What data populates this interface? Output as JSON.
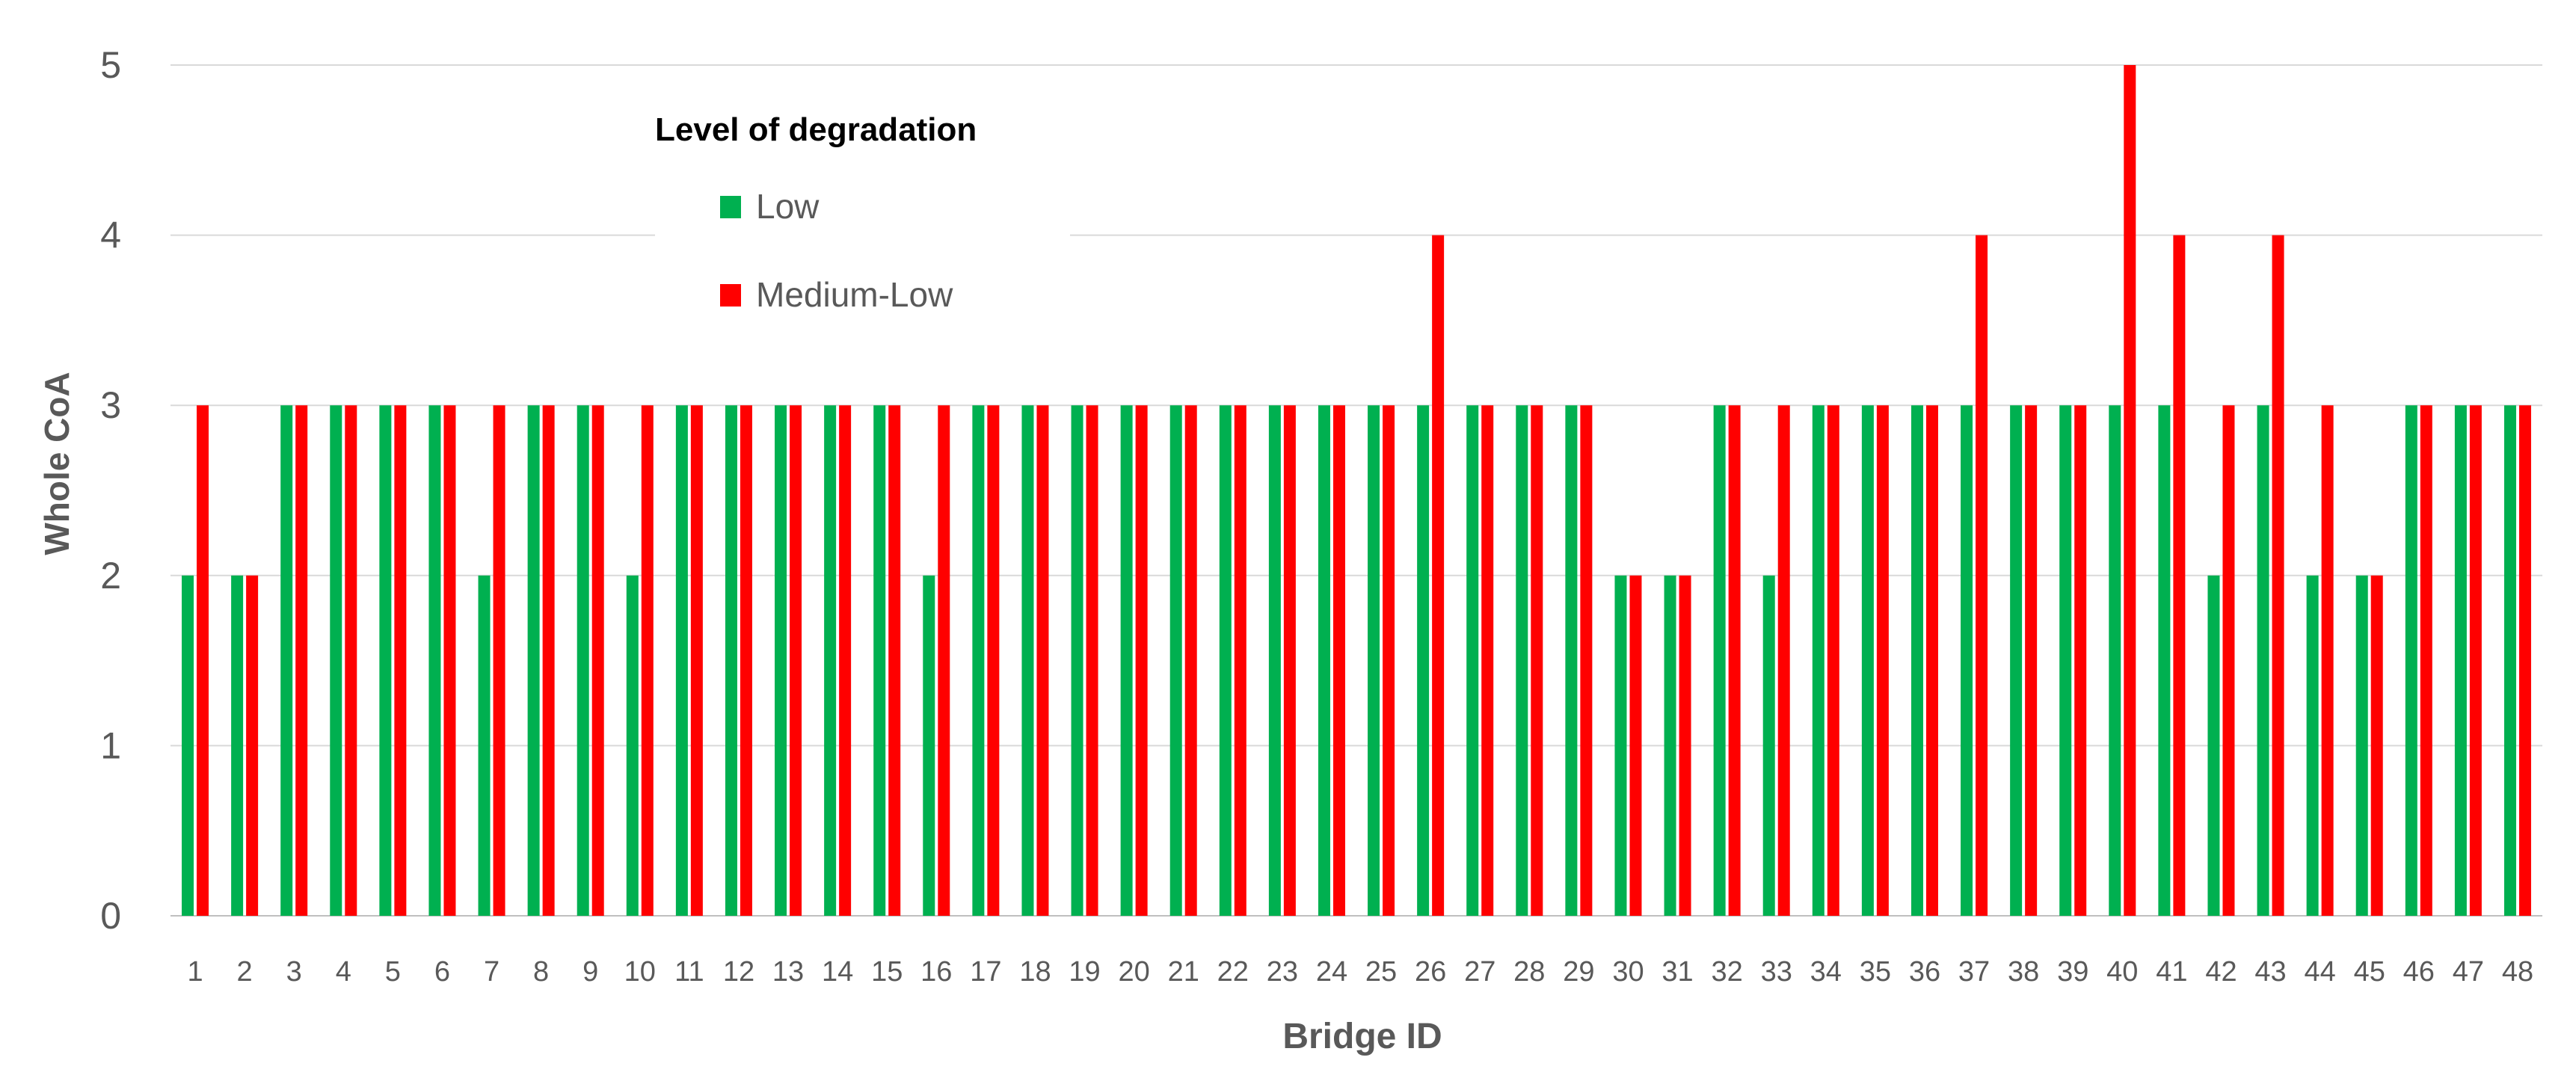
{
  "chart_data": {
    "type": "bar",
    "xlabel": "Bridge ID",
    "ylabel": "Whole CoA",
    "ylim": [
      0,
      5
    ],
    "yticks": [
      0,
      1,
      2,
      3,
      4,
      5
    ],
    "grid": true,
    "legend_title": "Level of degradation",
    "legend_position": "top-left",
    "categories": [
      "1",
      "2",
      "3",
      "4",
      "5",
      "6",
      "7",
      "8",
      "9",
      "10",
      "11",
      "12",
      "13",
      "14",
      "15",
      "16",
      "17",
      "18",
      "19",
      "20",
      "21",
      "22",
      "23",
      "24",
      "25",
      "26",
      "27",
      "28",
      "29",
      "30",
      "31",
      "32",
      "33",
      "34",
      "35",
      "36",
      "37",
      "38",
      "39",
      "40",
      "41",
      "42",
      "43",
      "44",
      "45",
      "46",
      "47",
      "48"
    ],
    "series": [
      {
        "name": "Low",
        "color": "#00b050",
        "values": [
          2,
          2,
          3,
          3,
          3,
          3,
          2,
          3,
          3,
          2,
          3,
          3,
          3,
          3,
          3,
          2,
          3,
          3,
          3,
          3,
          3,
          3,
          3,
          3,
          3,
          3,
          3,
          3,
          3,
          2,
          2,
          3,
          2,
          3,
          3,
          3,
          3,
          3,
          3,
          3,
          3,
          2,
          3,
          2,
          2,
          3,
          3,
          3
        ]
      },
      {
        "name": "Medium-Low",
        "color": "#ff0000",
        "values": [
          3,
          2,
          3,
          3,
          3,
          3,
          3,
          3,
          3,
          3,
          3,
          3,
          3,
          3,
          3,
          3,
          3,
          3,
          3,
          3,
          3,
          3,
          3,
          3,
          3,
          4,
          3,
          3,
          3,
          2,
          2,
          3,
          3,
          3,
          3,
          3,
          4,
          3,
          3,
          5,
          4,
          3,
          4,
          3,
          2,
          3,
          3,
          3
        ]
      }
    ]
  }
}
